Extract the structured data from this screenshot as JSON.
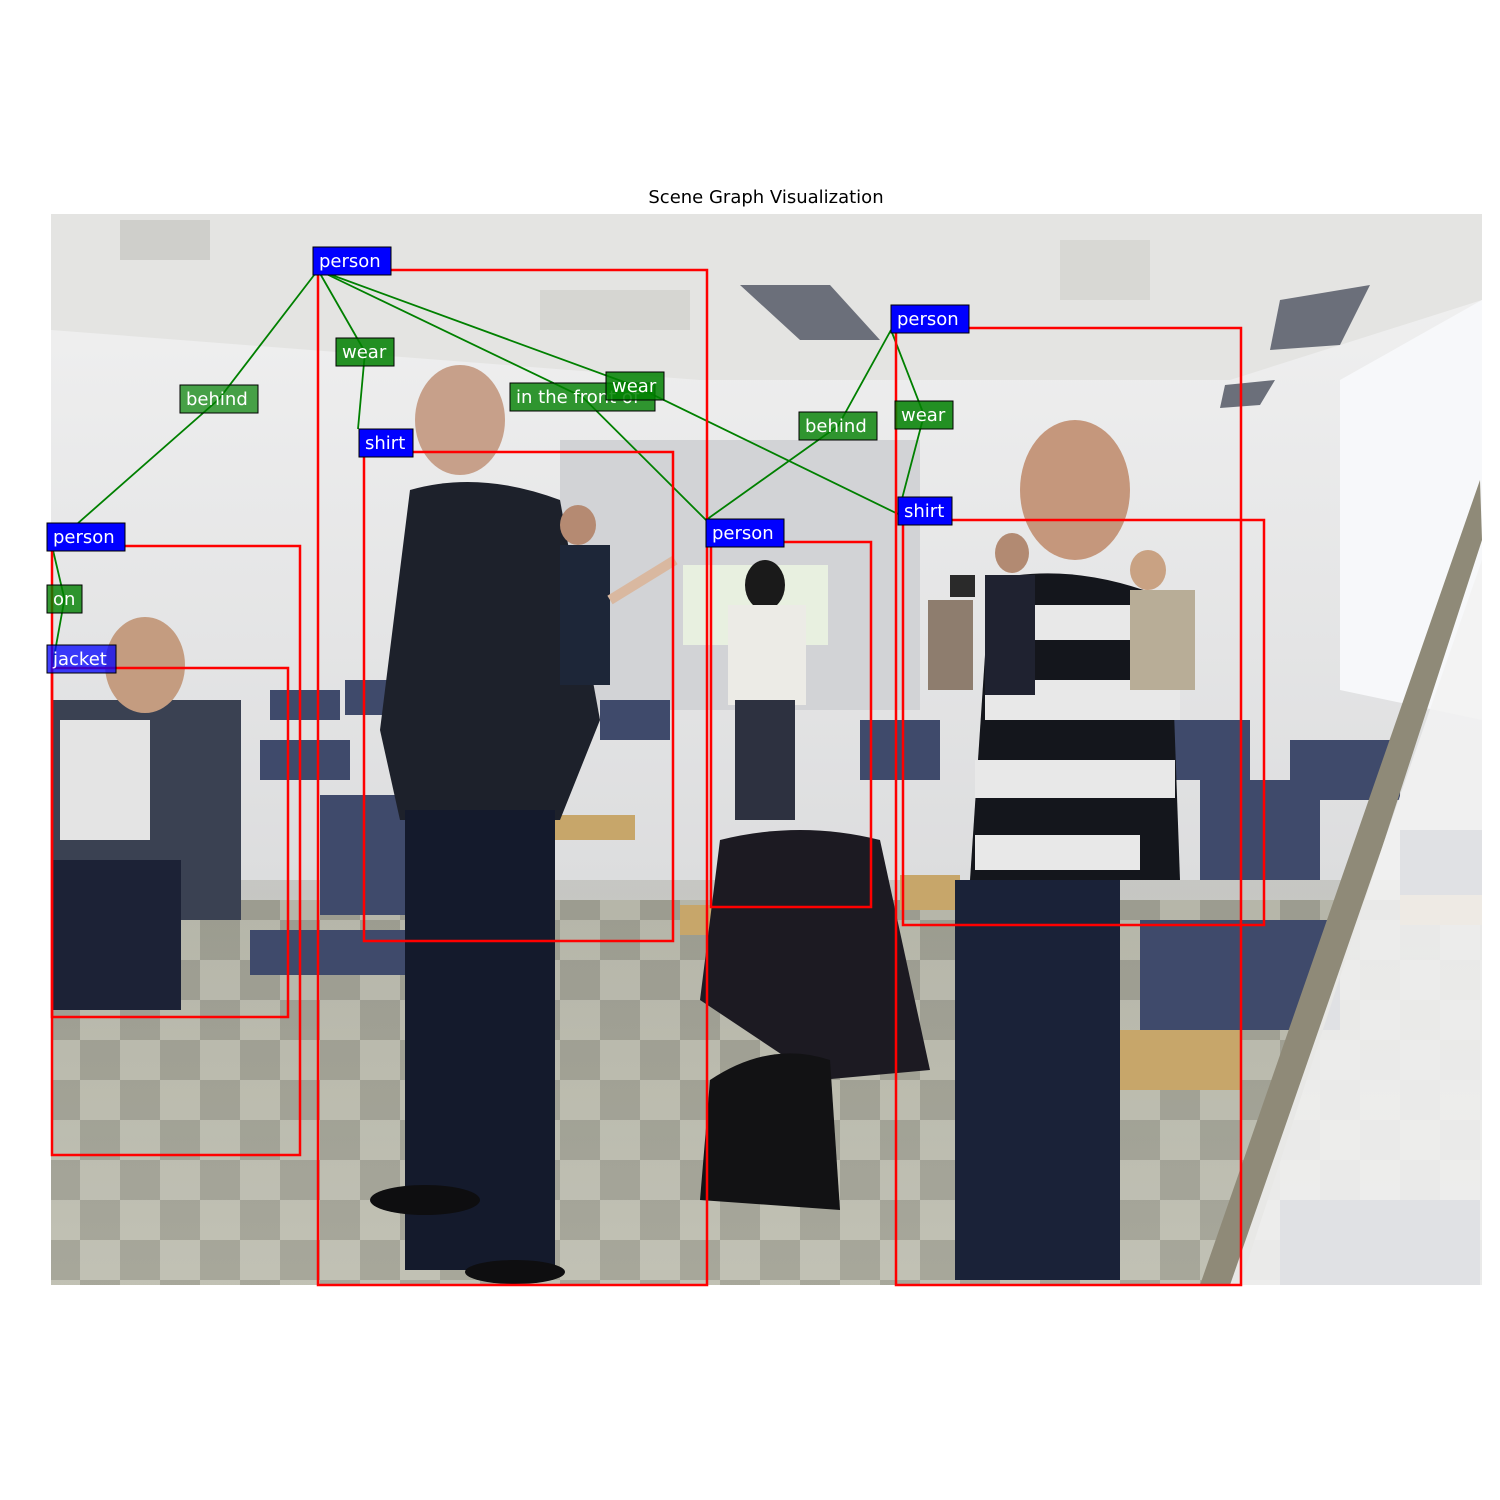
{
  "figure": {
    "title": "Scene Graph Visualization"
  },
  "photo": {
    "description_colors": {
      "wall": "#dcdcdc",
      "ceiling": "#e6e6e6",
      "floor_light": "#b9b9a8",
      "floor_dark": "#8a8a7c",
      "chairs": "#3d4766",
      "desks": "#c9a86a"
    }
  },
  "colors": {
    "object_label_bg": "#0000ff",
    "relation_label_bg": "#008000",
    "box_stroke": "#ff0000",
    "edge_stroke": "#008000",
    "label_text": "#ffffff"
  },
  "objects": [
    {
      "id": "person1",
      "label": "person"
    },
    {
      "id": "shirt1",
      "label": "shirt"
    },
    {
      "id": "person2",
      "label": "person"
    },
    {
      "id": "shirt2",
      "label": "shirt"
    },
    {
      "id": "person3",
      "label": "person"
    },
    {
      "id": "person4",
      "label": "person"
    },
    {
      "id": "jacket1",
      "label": "jacket"
    }
  ],
  "relations": [
    {
      "id": "rel_wear1",
      "label": "wear",
      "subject": "person1",
      "object": "shirt1"
    },
    {
      "id": "rel_behind1",
      "label": "behind",
      "subject": "person1",
      "object": "person4"
    },
    {
      "id": "rel_front1",
      "label": "in the front of",
      "subject": "person1",
      "object": "person3"
    },
    {
      "id": "rel_wear2",
      "label": "wear",
      "subject": "person1",
      "object": "shirt2"
    },
    {
      "id": "rel_behind2",
      "label": "behind",
      "subject": "person2",
      "object": "person3"
    },
    {
      "id": "rel_wear3",
      "label": "wear",
      "subject": "person2",
      "object": "shirt2"
    },
    {
      "id": "rel_on1",
      "label": "on",
      "subject": "person4",
      "object": "jacket1"
    }
  ]
}
